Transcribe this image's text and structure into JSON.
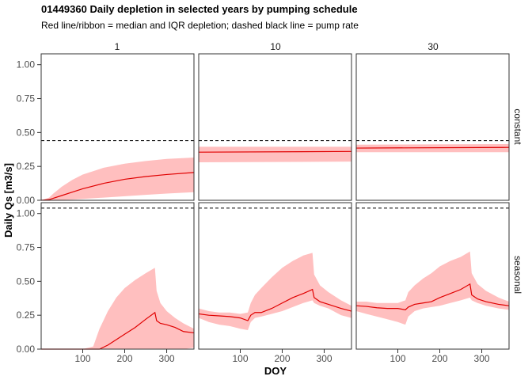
{
  "chart_data": {
    "type": "line",
    "title": "01449360 Daily depletion in selected years by pumping schedule",
    "subtitle": "Red line/ribbon = median and IQR depletion; dashed black line = pump rate",
    "xlabel": "DOY",
    "ylabel": "Daily Qs [m3/s]",
    "xlim": [
      1,
      365
    ],
    "ylim": [
      0,
      1.08
    ],
    "x_ticks": [
      "100",
      "200",
      "300"
    ],
    "y_ticks": [
      "0.00",
      "0.25",
      "0.50",
      "0.75",
      "1.00"
    ],
    "column_labels": [
      "1",
      "10",
      "30"
    ],
    "row_labels": [
      "constant",
      "seasonal"
    ],
    "colors": {
      "median": "#e00000",
      "ribbon": "#ffbfbf",
      "pump": "#000000",
      "zero_line": "#bebebe"
    },
    "panels": [
      {
        "row": "constant",
        "col": "1",
        "pump_rate": 0.44,
        "x": [
          1,
          20,
          30,
          50,
          75,
          100,
          150,
          200,
          250,
          300,
          365
        ],
        "median": [
          0.0,
          0.005,
          0.015,
          0.035,
          0.06,
          0.085,
          0.125,
          0.155,
          0.175,
          0.19,
          0.205
        ],
        "q25": [
          0.0,
          0.0,
          0.0,
          0.002,
          0.005,
          0.01,
          0.02,
          0.03,
          0.04,
          0.05,
          0.06
        ],
        "q75": [
          0.0,
          0.02,
          0.05,
          0.1,
          0.15,
          0.19,
          0.24,
          0.27,
          0.29,
          0.305,
          0.315
        ]
      },
      {
        "row": "constant",
        "col": "10",
        "pump_rate": 0.44,
        "x": [
          1,
          365
        ],
        "median": [
          0.355,
          0.36
        ],
        "q25": [
          0.28,
          0.285
        ],
        "q75": [
          0.395,
          0.395
        ]
      },
      {
        "row": "constant",
        "col": "30",
        "pump_rate": 0.44,
        "x": [
          1,
          365
        ],
        "median": [
          0.385,
          0.39
        ],
        "q25": [
          0.355,
          0.355
        ],
        "q75": [
          0.41,
          0.415
        ]
      },
      {
        "row": "seasonal",
        "col": "1",
        "pump_rate": 1.04,
        "x": [
          1,
          100,
          125,
          140,
          160,
          180,
          200,
          225,
          250,
          272,
          276,
          285,
          300,
          320,
          340,
          365
        ],
        "median": [
          0.0,
          0.0,
          0.0,
          0.0,
          0.03,
          0.07,
          0.11,
          0.16,
          0.22,
          0.27,
          0.21,
          0.19,
          0.18,
          0.16,
          0.13,
          0.12
        ],
        "q25": [
          0.0,
          0.0,
          0.0,
          0.0,
          0.0,
          0.0,
          0.0,
          0.0,
          0.0,
          0.0,
          0.0,
          0.0,
          0.0,
          0.0,
          0.0,
          0.01
        ],
        "q75": [
          0.0,
          0.0,
          0.02,
          0.15,
          0.28,
          0.38,
          0.45,
          0.51,
          0.56,
          0.6,
          0.43,
          0.34,
          0.28,
          0.23,
          0.19,
          0.15
        ]
      },
      {
        "row": "seasonal",
        "col": "10",
        "pump_rate": 1.04,
        "x": [
          1,
          25,
          50,
          75,
          100,
          118,
          125,
          135,
          150,
          175,
          200,
          225,
          250,
          272,
          276,
          290,
          310,
          340,
          365
        ],
        "median": [
          0.26,
          0.25,
          0.245,
          0.24,
          0.23,
          0.21,
          0.25,
          0.27,
          0.27,
          0.3,
          0.34,
          0.38,
          0.41,
          0.44,
          0.38,
          0.35,
          0.33,
          0.3,
          0.28
        ],
        "q25": [
          0.23,
          0.2,
          0.18,
          0.17,
          0.15,
          0.14,
          0.2,
          0.23,
          0.24,
          0.26,
          0.28,
          0.31,
          0.34,
          0.36,
          0.34,
          0.32,
          0.3,
          0.25,
          0.23
        ],
        "q75": [
          0.3,
          0.28,
          0.27,
          0.27,
          0.26,
          0.27,
          0.34,
          0.4,
          0.45,
          0.53,
          0.6,
          0.65,
          0.69,
          0.71,
          0.55,
          0.47,
          0.42,
          0.36,
          0.32
        ]
      },
      {
        "row": "seasonal",
        "col": "30",
        "pump_rate": 1.04,
        "x": [
          1,
          25,
          50,
          75,
          100,
          118,
          125,
          140,
          160,
          180,
          200,
          225,
          250,
          272,
          276,
          290,
          310,
          340,
          365
        ],
        "median": [
          0.32,
          0.315,
          0.305,
          0.3,
          0.3,
          0.29,
          0.31,
          0.33,
          0.34,
          0.35,
          0.38,
          0.41,
          0.44,
          0.48,
          0.4,
          0.37,
          0.35,
          0.33,
          0.32
        ],
        "q25": [
          0.28,
          0.26,
          0.24,
          0.22,
          0.2,
          0.18,
          0.24,
          0.28,
          0.3,
          0.31,
          0.32,
          0.34,
          0.36,
          0.38,
          0.36,
          0.34,
          0.32,
          0.3,
          0.29
        ],
        "q75": [
          0.35,
          0.35,
          0.34,
          0.34,
          0.34,
          0.36,
          0.42,
          0.47,
          0.52,
          0.56,
          0.61,
          0.65,
          0.68,
          0.72,
          0.56,
          0.48,
          0.43,
          0.38,
          0.35
        ]
      }
    ]
  }
}
